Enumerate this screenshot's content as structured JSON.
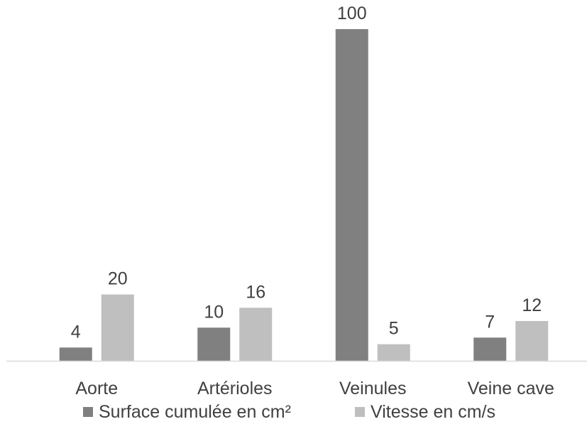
{
  "chart_data": {
    "type": "bar",
    "title": "",
    "xlabel": "",
    "ylabel": "",
    "categories": [
      "Aorte",
      "Artérioles",
      "Veinules",
      "Veine cave"
    ],
    "series": [
      {
        "name": "Surface cumulée en cm²",
        "values": [
          4,
          10,
          100,
          7
        ],
        "color": "#808080"
      },
      {
        "name": "Vitesse en cm/s",
        "values": [
          20,
          16,
          5,
          12
        ],
        "color": "#bfbfbf"
      }
    ],
    "axis_colors": {
      "baseline": "#d9d9d9",
      "text": "#404040"
    },
    "grid": false,
    "legend_position": "bottom",
    "value_axis_visible": false,
    "data_labels": true
  }
}
